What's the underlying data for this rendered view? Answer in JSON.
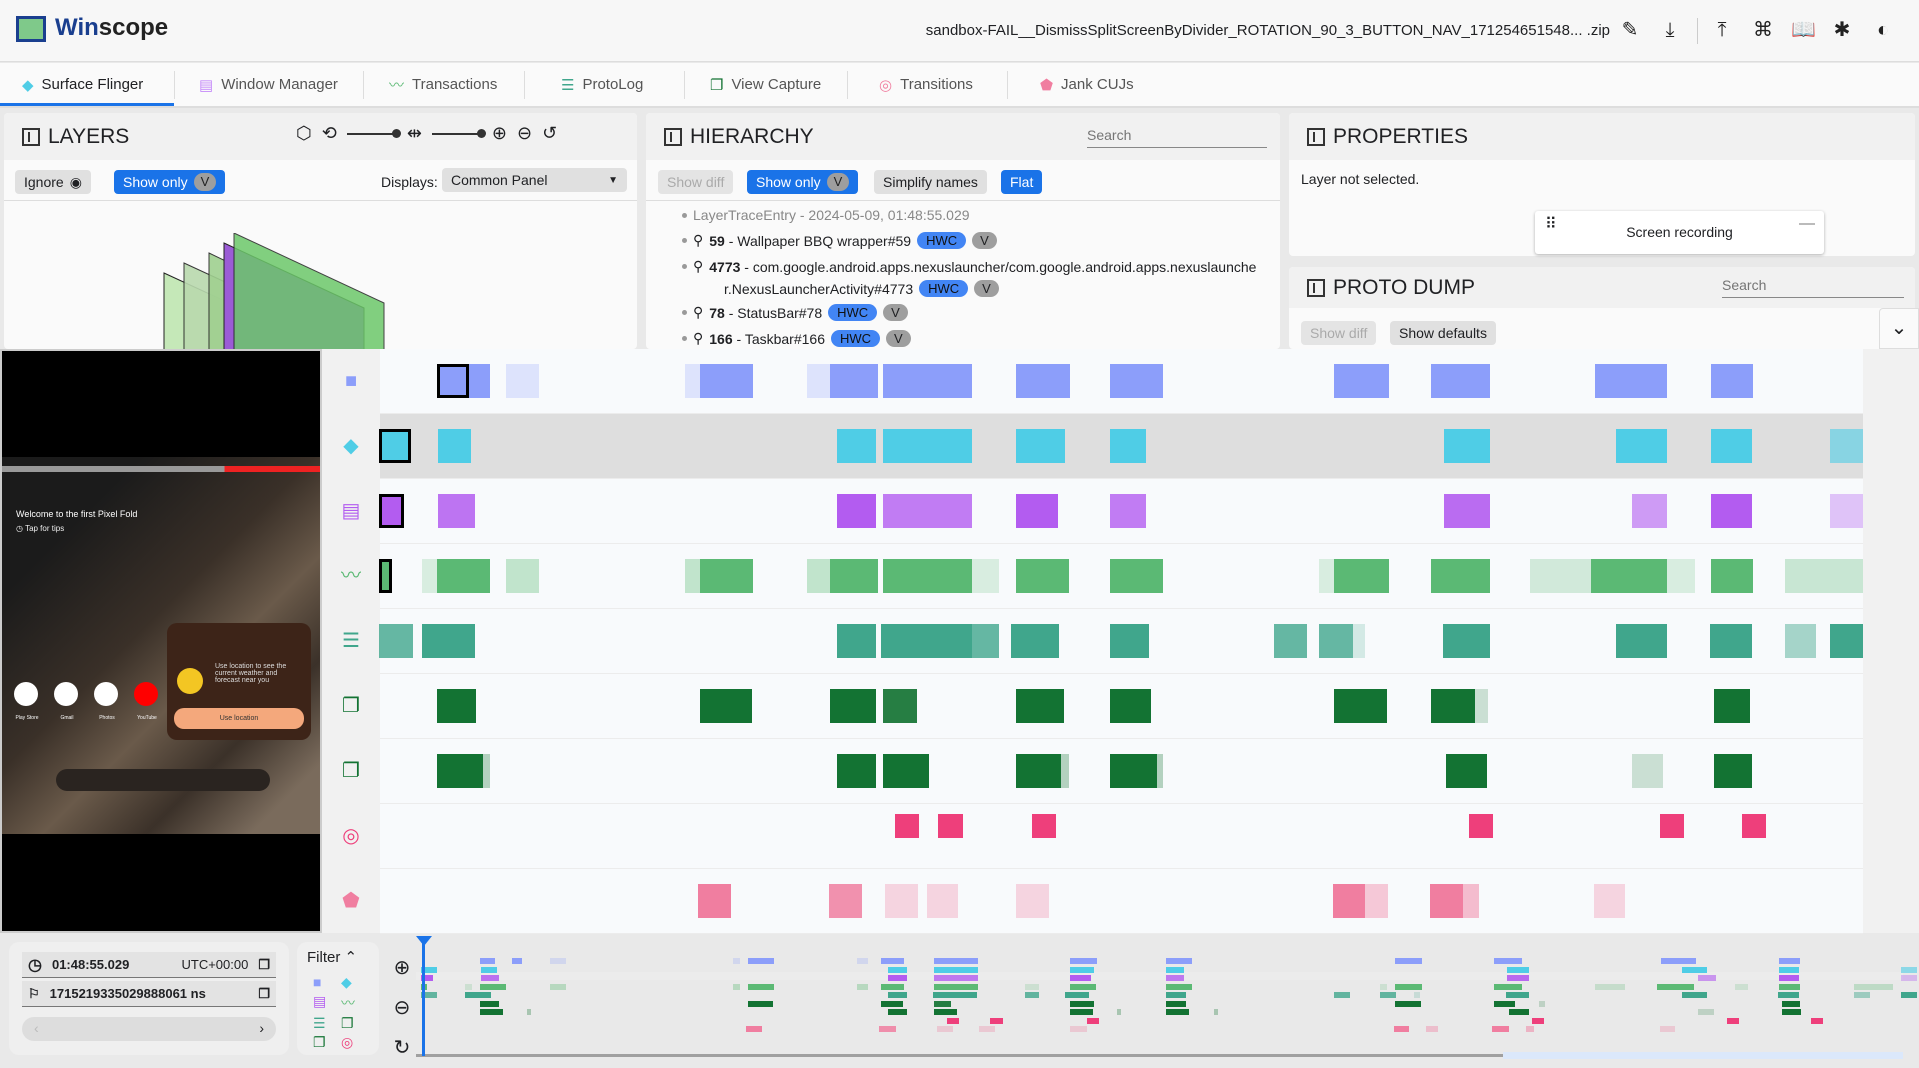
{
  "app": {
    "title_prefix": "Win",
    "title_suffix": "scope",
    "filename": "sandbox-FAIL__DismissSplitScreenByDivider_ROTATION_90_3_BUTTON_NAV_171254651548... .zip",
    "header_icons": [
      "edit-icon",
      "download-icon",
      "upload-icon",
      "shortcut-icon",
      "docs-icon",
      "bug-icon",
      "theme-icon"
    ]
  },
  "tabs": [
    {
      "label": "Surface Flinger",
      "icon": "layers-icon",
      "color": "#4fcde6"
    },
    {
      "label": "Window Manager",
      "icon": "window-icon",
      "color": "#c58af9"
    },
    {
      "label": "Transactions",
      "icon": "chart-line-icon",
      "color": "#5bb974"
    },
    {
      "label": "ProtoLog",
      "icon": "lines-icon",
      "color": "#40a68c"
    },
    {
      "label": "View Capture",
      "icon": "view-capture-icon",
      "color": "#137333"
    },
    {
      "label": "Transitions",
      "icon": "transitions-icon",
      "color": "#f07ea0"
    },
    {
      "label": "Jank CUJs",
      "icon": "label-icon",
      "color": "#f07ea0"
    }
  ],
  "layers": {
    "title": "LAYERS",
    "ignore": "Ignore",
    "show_only": "Show only",
    "v": "V",
    "displays_label": "Displays:",
    "display_value": "Common Panel"
  },
  "hierarchy": {
    "title": "HIERARCHY",
    "search_placeholder": "Search",
    "show_diff": "Show diff",
    "show_only": "Show only",
    "v": "V",
    "simplify": "Simplify names",
    "flat": "Flat",
    "root": "LayerTraceEntry - 2024-05-09, 01:48:55.029",
    "items": [
      {
        "id": "59",
        "name": " - Wallpaper BBQ wrapper#59"
      },
      {
        "id": "4773",
        "name": " - com.google.android.apps.nexuslauncher/com.google.android.apps.nexuslaunche",
        "cont": "r.NexusLauncherActivity#4773"
      },
      {
        "id": "78",
        "name": " - StatusBar#78"
      },
      {
        "id": "166",
        "name": " - Taskbar#166"
      }
    ],
    "hwc": "HWC"
  },
  "properties": {
    "title": "PROPERTIES",
    "empty": "Layer not selected.",
    "screen_recording": "Screen recording"
  },
  "proto_dump": {
    "title": "PROTO DUMP",
    "search_placeholder": "Search",
    "show_diff": "Show diff",
    "show_defaults": "Show defaults"
  },
  "phone": {
    "welcome": "Welcome to the first Pixel Fold",
    "tips": "Tap for tips",
    "weather": "Use location to see the current weather and forecast near you",
    "use_location": "Use location",
    "apps": [
      "Play Store",
      "Gmail",
      "Photos",
      "YouTube"
    ]
  },
  "timeline": {
    "rows": [
      {
        "icon": "video-icon",
        "color": "#8c9efa"
      },
      {
        "icon": "layers-icon",
        "color": "#4fcde6"
      },
      {
        "icon": "window-icon",
        "color": "#b35cf0"
      },
      {
        "icon": "chart-line-icon",
        "color": "#5bb974"
      },
      {
        "icon": "lines-icon",
        "color": "#40a68c"
      },
      {
        "icon": "view-capture-icon",
        "color": "#137333"
      },
      {
        "icon": "view-capture-icon",
        "color": "#137333"
      },
      {
        "icon": "transitions-icon",
        "color": "#ee3f7b"
      },
      {
        "icon": "label-icon",
        "color": "#f07ea0"
      }
    ]
  },
  "time": {
    "clock": "01:48:55.029",
    "tz": "UTC+00:00",
    "ns": "1715219335029888061 ns",
    "filter": "Filter"
  }
}
